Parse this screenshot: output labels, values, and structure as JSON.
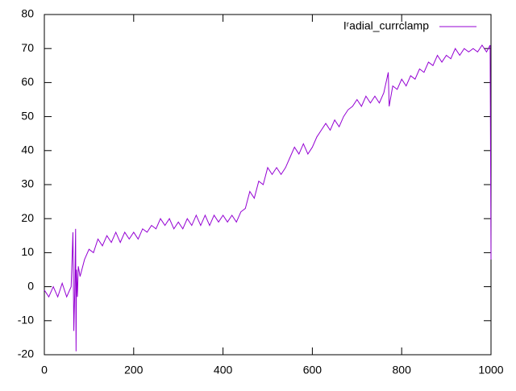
{
  "chart_data": {
    "type": "line",
    "x": [
      0,
      10,
      20,
      30,
      40,
      50,
      60,
      64,
      66,
      68,
      70,
      71,
      72,
      74,
      76,
      80,
      90,
      100,
      110,
      120,
      130,
      140,
      150,
      160,
      170,
      180,
      190,
      200,
      210,
      220,
      230,
      240,
      250,
      260,
      270,
      280,
      290,
      300,
      310,
      320,
      330,
      340,
      350,
      360,
      370,
      380,
      390,
      400,
      410,
      420,
      430,
      440,
      450,
      460,
      470,
      480,
      490,
      500,
      510,
      520,
      530,
      540,
      550,
      560,
      570,
      580,
      590,
      600,
      610,
      620,
      630,
      640,
      650,
      660,
      670,
      680,
      690,
      700,
      710,
      720,
      730,
      740,
      750,
      760,
      770,
      772,
      780,
      790,
      800,
      810,
      820,
      830,
      840,
      850,
      860,
      870,
      880,
      890,
      900,
      910,
      920,
      930,
      940,
      950,
      960,
      970,
      980,
      990,
      998,
      1000
    ],
    "series": [
      {
        "name": "Iʳadial_currclamp",
        "color": "#9400d3",
        "values": [
          -1,
          -3,
          0,
          -3,
          1,
          -3,
          0,
          16,
          -13,
          -2,
          17,
          -19,
          5,
          -3,
          6,
          3,
          8,
          11,
          10,
          14,
          12,
          15,
          13,
          16,
          13,
          16,
          14,
          16,
          14,
          17,
          16,
          18,
          17,
          20,
          18,
          20,
          17,
          19,
          17,
          20,
          18,
          21,
          18,
          21,
          18,
          21,
          19,
          21,
          19,
          21,
          19,
          22,
          23,
          28,
          26,
          31,
          30,
          35,
          33,
          35,
          33,
          35,
          38,
          41,
          39,
          42,
          39,
          41,
          44,
          46,
          48,
          46,
          49,
          47,
          50,
          52,
          53,
          55,
          53,
          56,
          54,
          56,
          54,
          57,
          63,
          53,
          59,
          58,
          61,
          59,
          62,
          61,
          64,
          63,
          66,
          65,
          68,
          66,
          68,
          67,
          70,
          68,
          70,
          69,
          70,
          69,
          71,
          69,
          71,
          8
        ]
      }
    ],
    "xlim": [
      0,
      1000
    ],
    "xticks": [
      0,
      200,
      400,
      600,
      800,
      1000
    ],
    "ylim": [
      -20,
      80
    ],
    "yticks": [
      -20,
      -10,
      0,
      10,
      20,
      30,
      40,
      50,
      60,
      70,
      80
    ],
    "legend": "top-right"
  }
}
